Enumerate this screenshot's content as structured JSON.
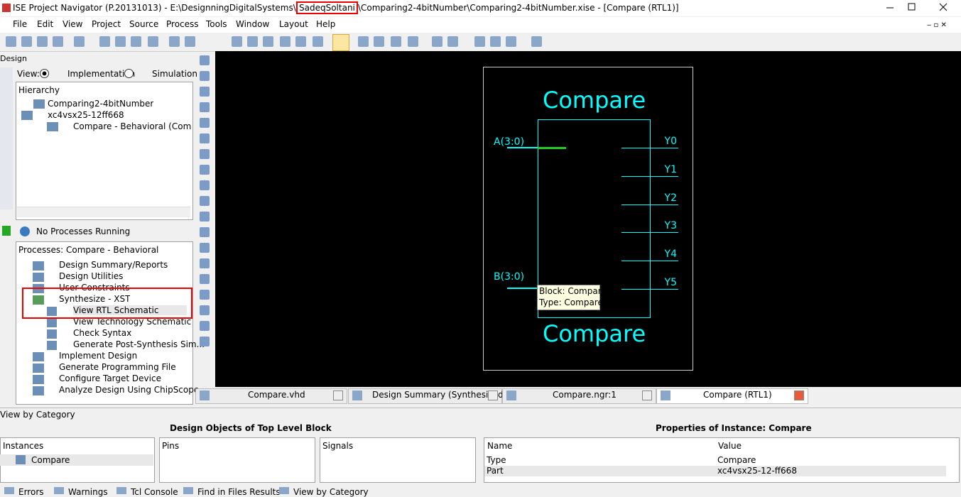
{
  "title_bar": {
    "prefix": "ISE Project Navigator (P.20131013) - E:\\DesignningDigitalSystems\\",
    "highlighted": "SadeqSoltani",
    "suffix": "\\Comparing2-4bitNumber\\Comparing2-4bitNumber.xise - [Compare (RTL1)]"
  },
  "menu": [
    "File",
    "Edit",
    "View",
    "Project",
    "Source",
    "Process",
    "Tools",
    "Window",
    "Layout",
    "Help"
  ],
  "design_panel": {
    "title": "Design",
    "view_label": "View:",
    "implementation": "Implementation",
    "simulation": "Simulation",
    "hierarchy": "Hierarchy",
    "tree": [
      "Comparing2-4bitNumber",
      "xc4vsx25-12ff668",
      "Compare - Behavioral (Compare"
    ]
  },
  "process_status": "No Processes Running",
  "processes": {
    "header": "Processes: Compare - Behavioral",
    "items": [
      {
        "label": "Design Summary/Reports"
      },
      {
        "label": "Design Utilities"
      },
      {
        "label": "User Constraints"
      },
      {
        "label": "Synthesize - XST",
        "children": [
          "View RTL Schematic",
          "View Technology Schematic",
          "Check Syntax",
          "Generate Post-Synthesis Sim..."
        ]
      },
      {
        "label": "Implement Design"
      },
      {
        "label": "Generate Programming File"
      },
      {
        "label": "Configure Target Device"
      },
      {
        "label": "Analyze Design Using ChipScope"
      }
    ]
  },
  "schematic": {
    "block_top": "Compare",
    "block_bottom": "Compare",
    "inputs": [
      "A(3:0)",
      "B(3:0)"
    ],
    "outputs": [
      "Y0",
      "Y1",
      "Y2",
      "Y3",
      "Y4",
      "Y5"
    ],
    "tooltip": [
      "Block: Compare",
      "Type: Compare"
    ]
  },
  "editor_tabs": [
    "Compare.vhd",
    "Design Summary (Synthesized)",
    "Compare.ngr:1",
    "Compare (RTL1)"
  ],
  "bottom_panel": {
    "title": "View by Category",
    "left_header": "Design Objects of Top Level Block",
    "right_header": "Properties of Instance: Compare",
    "columns": [
      "Instances",
      "Pins",
      "Signals"
    ],
    "instance": "Compare",
    "properties_columns": [
      "Name",
      "Value"
    ],
    "properties": [
      [
        "Type",
        "Compare"
      ],
      [
        "Part",
        "xc4vsx25-12-ff668"
      ]
    ]
  },
  "bottom_tabs": [
    "Errors",
    "Warnings",
    "Tcl Console",
    "Find in Files Results",
    "View by Category"
  ]
}
